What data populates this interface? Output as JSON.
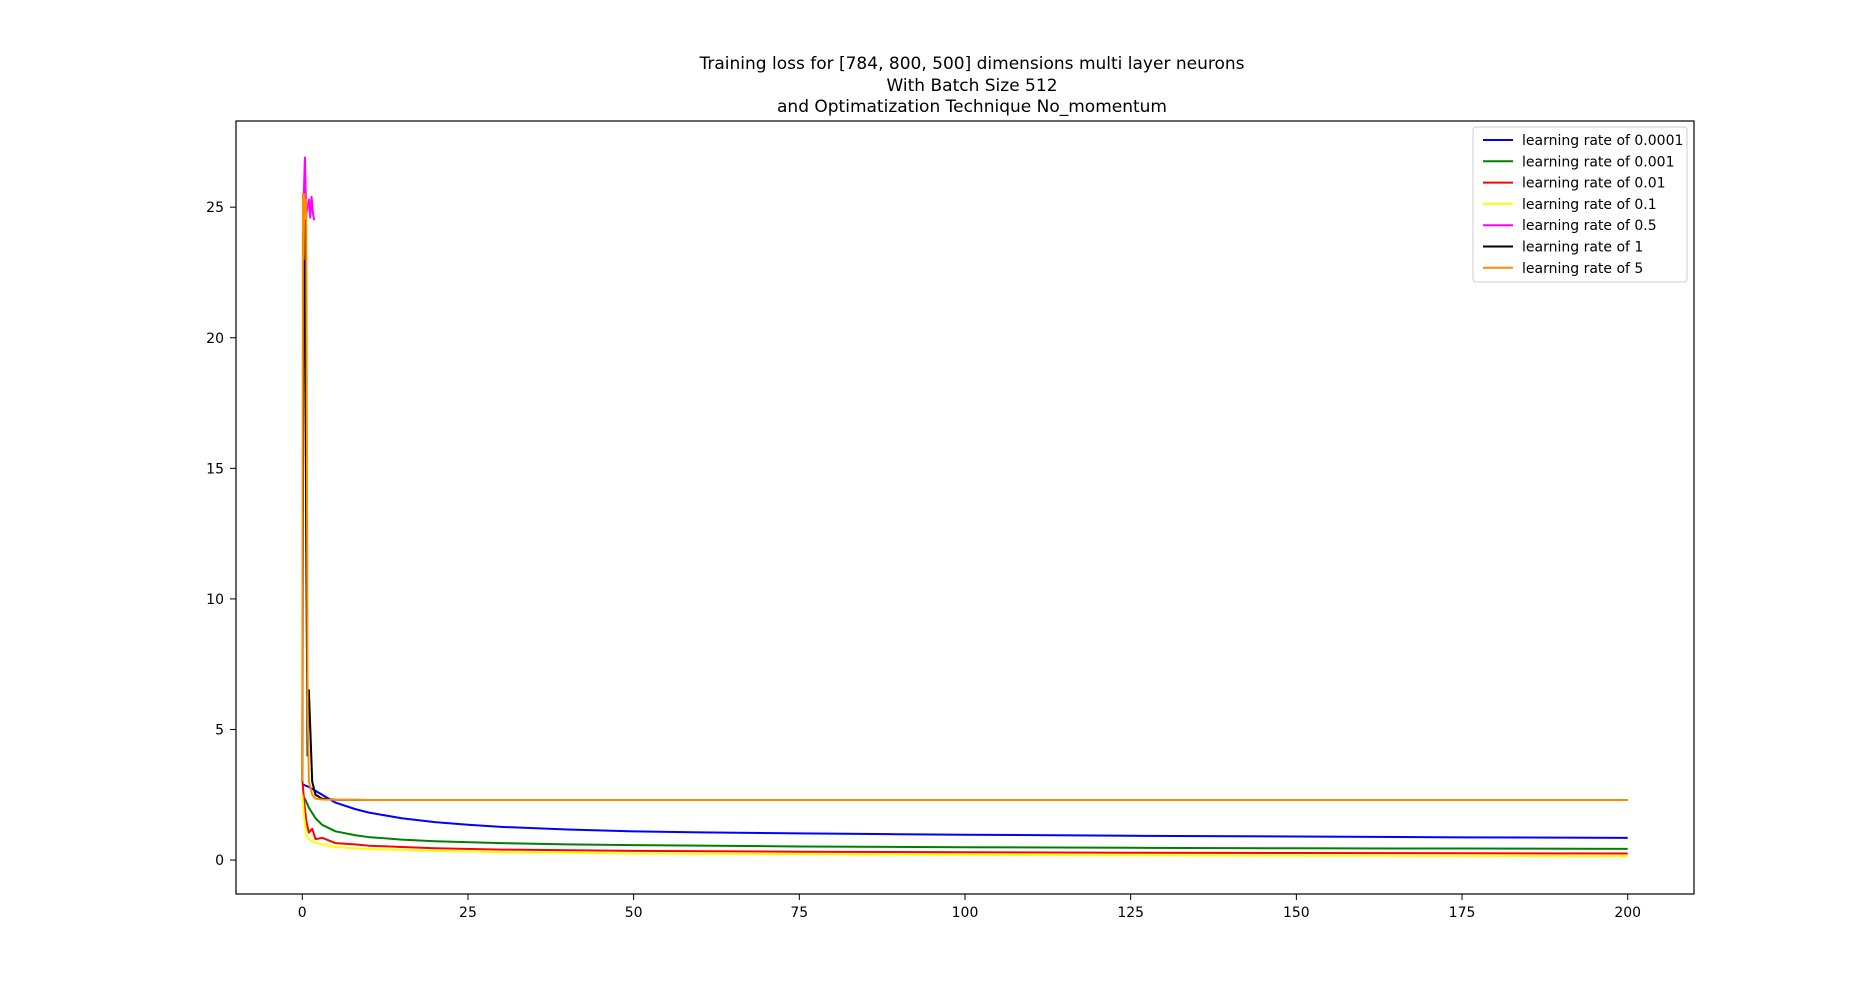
{
  "chart_data": {
    "type": "line",
    "title_lines": [
      "Training loss for [784, 800, 500] dimensions multi layer neurons",
      "With Batch Size  512",
      "and Optimatization Technique   No_momentum"
    ],
    "xlabel": "",
    "ylabel": "",
    "xlim": [
      -10,
      210
    ],
    "ylim": [
      -1.3,
      28.3
    ],
    "xticks": [
      0,
      25,
      50,
      75,
      100,
      125,
      150,
      175,
      200
    ],
    "yticks": [
      0,
      5,
      10,
      15,
      20,
      25
    ],
    "grid": false,
    "legend_position": "top-right",
    "series": [
      {
        "name": "learning rate of 0.0001",
        "color": "#0000ff",
        "x": [
          0,
          0.5,
          1,
          2,
          3,
          5,
          8,
          10,
          15,
          20,
          25,
          30,
          40,
          50,
          60,
          75,
          90,
          100,
          125,
          150,
          175,
          200
        ],
        "y": [
          2.9,
          2.85,
          2.8,
          2.65,
          2.5,
          2.2,
          1.95,
          1.82,
          1.6,
          1.45,
          1.35,
          1.27,
          1.17,
          1.1,
          1.06,
          1.02,
          0.99,
          0.97,
          0.93,
          0.9,
          0.87,
          0.85
        ]
      },
      {
        "name": "learning rate of 0.001",
        "color": "#008000",
        "x": [
          0,
          0.5,
          1,
          2,
          3,
          5,
          8,
          10,
          15,
          20,
          30,
          40,
          50,
          75,
          100,
          125,
          150,
          175,
          200
        ],
        "y": [
          2.5,
          2.3,
          2.0,
          1.6,
          1.35,
          1.1,
          0.95,
          0.88,
          0.78,
          0.72,
          0.65,
          0.6,
          0.57,
          0.52,
          0.49,
          0.47,
          0.45,
          0.44,
          0.43
        ]
      },
      {
        "name": "learning rate of 0.01",
        "color": "#ff0000",
        "x": [
          0,
          0.3,
          0.6,
          1,
          1.5,
          2,
          3,
          5,
          8,
          10,
          15,
          20,
          30,
          50,
          75,
          100,
          125,
          150,
          175,
          200
        ],
        "y": [
          3.1,
          2.2,
          1.5,
          1.05,
          1.2,
          0.8,
          0.85,
          0.65,
          0.6,
          0.55,
          0.5,
          0.45,
          0.4,
          0.35,
          0.32,
          0.3,
          0.28,
          0.27,
          0.26,
          0.25
        ]
      },
      {
        "name": "learning rate of 0.1",
        "color": "#ffff00",
        "x": [
          0,
          0.3,
          0.6,
          1,
          2,
          3,
          5,
          10,
          20,
          30,
          50,
          75,
          100,
          125,
          150,
          175,
          200
        ],
        "y": [
          2.5,
          1.6,
          1.0,
          0.8,
          0.65,
          0.6,
          0.5,
          0.42,
          0.35,
          0.3,
          0.25,
          0.22,
          0.2,
          0.18,
          0.17,
          0.16,
          0.15
        ]
      },
      {
        "name": "learning rate of 0.5",
        "color": "#ff00ff",
        "x": [
          0.2,
          0.4,
          0.6,
          0.8,
          1.0,
          1.2,
          1.4,
          1.6,
          1.8
        ],
        "y": [
          25.2,
          26.9,
          24.7,
          25.0,
          25.3,
          24.6,
          25.4,
          24.8,
          24.5
        ]
      },
      {
        "name": "learning rate of 1",
        "color": "#000000",
        "x": [
          0,
          0.2,
          0.4,
          0.6,
          0.8,
          1.0,
          1.5,
          2,
          3,
          5,
          10,
          50,
          100,
          150,
          200
        ],
        "y": [
          3.0,
          23.0,
          24.5,
          12.0,
          4.0,
          6.5,
          3.0,
          2.5,
          2.35,
          2.31,
          2.3,
          2.3,
          2.3,
          2.3,
          2.3
        ]
      },
      {
        "name": "learning rate of 5",
        "color": "#ff8c00",
        "x": [
          0,
          0.1,
          0.2,
          0.3,
          0.4,
          0.5,
          0.6,
          0.7,
          0.8,
          1.0,
          1.5,
          2,
          3,
          5,
          10,
          50,
          100,
          150,
          200
        ],
        "y": [
          3.0,
          25.5,
          23.0,
          25.5,
          24.8,
          25.3,
          25.2,
          16.0,
          6.0,
          3.0,
          2.5,
          2.35,
          2.32,
          2.31,
          2.3,
          2.3,
          2.3,
          2.3,
          2.3
        ]
      }
    ]
  }
}
